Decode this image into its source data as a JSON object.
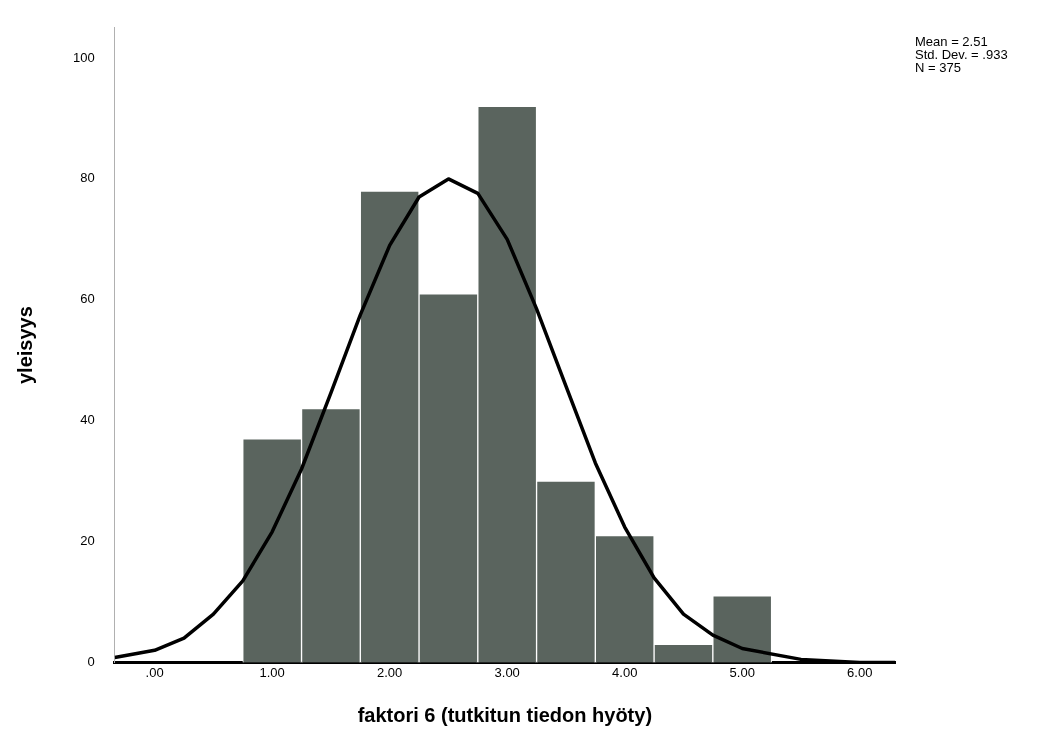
{
  "chart_data": {
    "type": "histogram",
    "xlabel": "faktori 6 (tutkitun tiedon hyöty)",
    "ylabel": "yleisyys",
    "bins": [
      0.75,
      1.25,
      1.75,
      2.25,
      2.75,
      3.25,
      3.75,
      4.25,
      4.75,
      5.25
    ],
    "values": [
      37,
      42,
      78,
      61,
      92,
      30,
      21,
      3,
      11
    ],
    "color": "#5a645e",
    "series": [
      {
        "type": "line",
        "color": "#000000",
        "x": [
          -0.34,
          0,
          0.25,
          0.5,
          0.75,
          1,
          1.25,
          1.5,
          1.75,
          2,
          2.25,
          2.5,
          2.75,
          3,
          3.25,
          3.5,
          3.75,
          4,
          4.25,
          4.5,
          4.75,
          5,
          5.5,
          6,
          6.3
        ],
        "values": [
          0.8,
          2,
          4,
          8,
          13.5,
          21.6,
          32,
          44.6,
          57.5,
          69,
          77,
          80,
          77.6,
          70,
          58.5,
          45.7,
          33,
          22.4,
          14,
          8,
          4.5,
          2.3,
          0.5,
          0,
          0
        ]
      }
    ],
    "xlim": [
      -0.34,
      6.3
    ],
    "ylim": [
      0,
      105
    ],
    "xticks": [
      {
        "value": 0,
        "label": ".00"
      },
      {
        "value": 1,
        "label": "1.00"
      },
      {
        "value": 2,
        "label": "2.00"
      },
      {
        "value": 3,
        "label": "3.00"
      },
      {
        "value": 4,
        "label": "4.00"
      },
      {
        "value": 5,
        "label": "5.00"
      },
      {
        "value": 6,
        "label": "6.00"
      }
    ],
    "yticks": [
      0,
      20,
      40,
      60,
      80,
      100
    ],
    "annotations": [
      "Mean = 2.51",
      "Std. Dev. = .933",
      "N = 375"
    ]
  }
}
